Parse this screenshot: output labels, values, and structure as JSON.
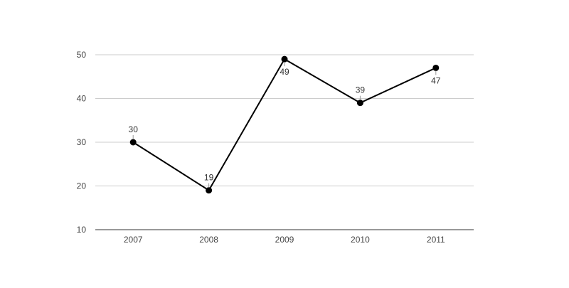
{
  "chart_data": {
    "type": "line",
    "title": "",
    "xlabel": "",
    "ylabel": "",
    "categories": [
      "2007",
      "2008",
      "2009",
      "2010",
      "2011"
    ],
    "series": [
      {
        "values": [
          30,
          19,
          49,
          39,
          47
        ]
      }
    ],
    "ylim": [
      10,
      50
    ],
    "yticks": [
      10,
      20,
      30,
      40,
      50
    ],
    "data_label_position": [
      "above",
      "above",
      "below",
      "above",
      "below"
    ],
    "grid": true,
    "legend": "none",
    "colors": {
      "line": "#000000",
      "grid": "#cccccc",
      "axis": "#333333",
      "text": "#444444"
    }
  }
}
